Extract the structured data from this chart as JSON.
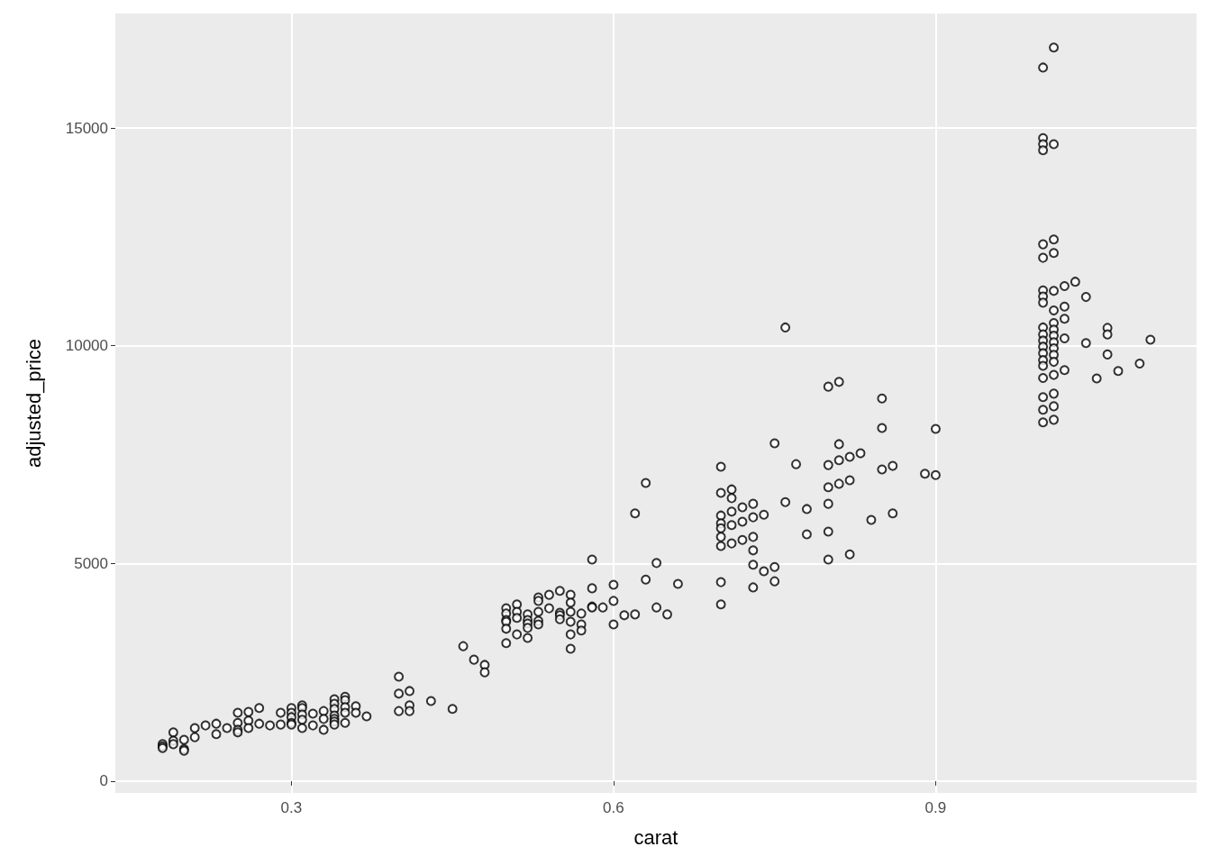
{
  "chart_data": {
    "type": "scatter",
    "xlabel": "carat",
    "ylabel": "adjusted_price",
    "x": [
      0.18,
      0.18,
      0.18,
      0.19,
      0.19,
      0.19,
      0.2,
      0.2,
      0.2,
      0.21,
      0.21,
      0.22,
      0.23,
      0.23,
      0.24,
      0.25,
      0.25,
      0.25,
      0.25,
      0.26,
      0.26,
      0.26,
      0.27,
      0.27,
      0.28,
      0.29,
      0.29,
      0.3,
      0.3,
      0.3,
      0.3,
      0.3,
      0.31,
      0.31,
      0.31,
      0.31,
      0.31,
      0.32,
      0.32,
      0.33,
      0.33,
      0.33,
      0.34,
      0.34,
      0.34,
      0.34,
      0.34,
      0.34,
      0.34,
      0.35,
      0.35,
      0.35,
      0.35,
      0.35,
      0.36,
      0.36,
      0.37,
      0.4,
      0.4,
      0.4,
      0.41,
      0.41,
      0.41,
      0.43,
      0.45,
      0.46,
      0.47,
      0.48,
      0.48,
      0.5,
      0.5,
      0.5,
      0.5,
      0.5,
      0.5,
      0.51,
      0.51,
      0.51,
      0.51,
      0.52,
      0.52,
      0.52,
      0.52,
      0.52,
      0.53,
      0.53,
      0.53,
      0.53,
      0.53,
      0.54,
      0.54,
      0.55,
      0.55,
      0.55,
      0.55,
      0.56,
      0.56,
      0.56,
      0.56,
      0.56,
      0.56,
      0.57,
      0.57,
      0.57,
      0.58,
      0.58,
      0.58,
      0.58,
      0.59,
      0.6,
      0.6,
      0.6,
      0.61,
      0.62,
      0.62,
      0.63,
      0.63,
      0.64,
      0.64,
      0.65,
      0.66,
      0.7,
      0.7,
      0.7,
      0.7,
      0.7,
      0.7,
      0.7,
      0.7,
      0.7,
      0.71,
      0.71,
      0.71,
      0.71,
      0.71,
      0.72,
      0.72,
      0.72,
      0.73,
      0.73,
      0.73,
      0.73,
      0.73,
      0.73,
      0.74,
      0.74,
      0.75,
      0.75,
      0.75,
      0.76,
      0.76,
      0.77,
      0.78,
      0.78,
      0.8,
      0.8,
      0.8,
      0.8,
      0.8,
      0.8,
      0.81,
      0.81,
      0.81,
      0.81,
      0.82,
      0.82,
      0.82,
      0.83,
      0.84,
      0.85,
      0.85,
      0.85,
      0.86,
      0.86,
      0.89,
      0.9,
      0.9,
      1.0,
      1.0,
      1.0,
      1.0,
      1.0,
      1.0,
      1.0,
      1.0,
      1.0,
      1.0,
      1.0,
      1.0,
      1.0,
      1.0,
      1.0,
      1.0,
      1.0,
      1.0,
      1.0,
      1.0,
      1.01,
      1.01,
      1.01,
      1.01,
      1.01,
      1.01,
      1.01,
      1.01,
      1.01,
      1.01,
      1.01,
      1.01,
      1.01,
      1.01,
      1.01,
      1.01,
      1.01,
      1.02,
      1.02,
      1.02,
      1.02,
      1.02,
      1.03,
      1.04,
      1.04,
      1.05,
      1.06,
      1.06,
      1.06,
      1.07,
      1.09,
      1.1
    ],
    "values": [
      850,
      800,
      760,
      1120,
      930,
      850,
      950,
      740,
      700,
      1220,
      1010,
      1280,
      1320,
      1080,
      1220,
      1570,
      1340,
      1180,
      1120,
      1590,
      1390,
      1220,
      1680,
      1320,
      1280,
      1570,
      1300,
      1680,
      1570,
      1470,
      1340,
      1300,
      1740,
      1680,
      1530,
      1410,
      1220,
      1550,
      1280,
      1610,
      1430,
      1180,
      1880,
      1780,
      1660,
      1510,
      1430,
      1370,
      1300,
      1940,
      1860,
      1700,
      1570,
      1340,
      1720,
      1570,
      1490,
      2400,
      2010,
      1610,
      2070,
      1740,
      1610,
      1840,
      1660,
      3100,
      2790,
      2670,
      2500,
      3970,
      3850,
      3700,
      3660,
      3500,
      3170,
      4060,
      3890,
      3750,
      3370,
      3830,
      3700,
      3620,
      3520,
      3290,
      4220,
      4140,
      3890,
      3680,
      3600,
      4280,
      3970,
      4370,
      3870,
      3810,
      3720,
      4280,
      4100,
      3890,
      3660,
      3370,
      3040,
      3850,
      3600,
      3460,
      5090,
      4430,
      4010,
      3990,
      3990,
      4510,
      4140,
      3600,
      3810,
      6150,
      3830,
      6850,
      4630,
      5010,
      3990,
      3830,
      4530,
      7220,
      6620,
      6100,
      5920,
      5810,
      5610,
      5400,
      4570,
      4060,
      6700,
      6500,
      6190,
      5880,
      5460,
      6290,
      5960,
      5540,
      6370,
      6060,
      5610,
      5300,
      4970,
      4450,
      6120,
      4820,
      7760,
      4920,
      4590,
      10420,
      6410,
      7280,
      6250,
      5670,
      9060,
      7260,
      6750,
      6370,
      5730,
      5090,
      9170,
      7740,
      7370,
      6830,
      7450,
      6910,
      5210,
      7530,
      6000,
      8790,
      8110,
      7160,
      7240,
      6150,
      7060,
      8090,
      7030,
      16390,
      14770,
      14630,
      14490,
      12330,
      12020,
      11270,
      11130,
      10990,
      10420,
      10260,
      10120,
      9980,
      9830,
      9670,
      9540,
      9260,
      8820,
      8530,
      8240,
      16850,
      14630,
      12440,
      12130,
      11260,
      10810,
      10520,
      10370,
      10230,
      10080,
      9940,
      9790,
      9630,
      9330,
      8900,
      8610,
      8300,
      11370,
      10900,
      10620,
      10170,
      9440,
      11470,
      11120,
      10060,
      9250,
      10410,
      10260,
      9800,
      9420,
      9590,
      10140
    ],
    "color": "#000000",
    "marker": "circle",
    "xlim": [
      0.136,
      1.143
    ],
    "xticks": [
      0.3,
      0.6,
      0.9
    ],
    "ylim": [
      -270,
      17630
    ],
    "yticks": [
      0,
      5000,
      10000,
      15000
    ],
    "grid": true
  }
}
